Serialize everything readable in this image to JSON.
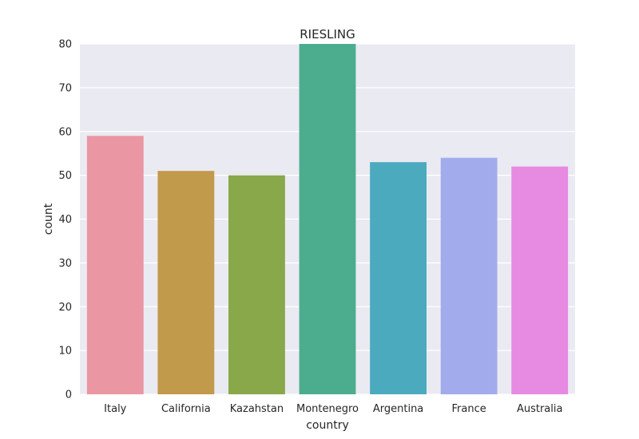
{
  "chart_data": {
    "type": "bar",
    "title": "RIESLING",
    "xlabel": "country",
    "ylabel": "count",
    "categories": [
      "Italy",
      "California",
      "Kazahstan",
      "Montenegro",
      "Argentina",
      "France",
      "Australia"
    ],
    "values": [
      59,
      51,
      50,
      80,
      53,
      54,
      52
    ],
    "colors": [
      "#ea96a3",
      "#c29a4c",
      "#88a84a",
      "#4cad8e",
      "#4caabe",
      "#a2acec",
      "#e68ae2"
    ],
    "ylim": [
      0,
      80
    ],
    "yticks": [
      0,
      10,
      20,
      30,
      40,
      50,
      60,
      70,
      80
    ],
    "grid": true,
    "background_color": "#eaeaf2",
    "grid_color": "#ffffff"
  }
}
